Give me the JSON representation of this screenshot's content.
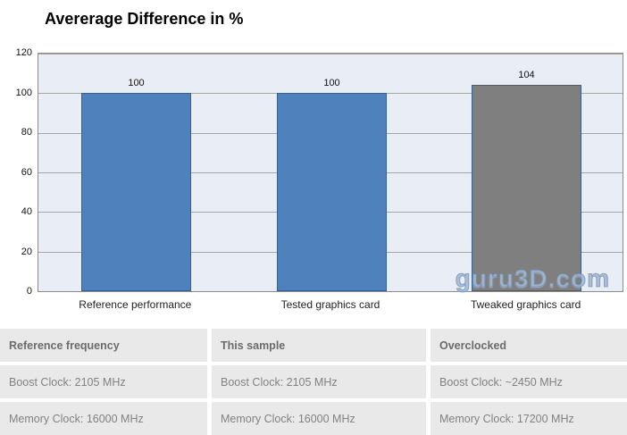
{
  "chart_data": {
    "type": "bar",
    "title": "Avererage Difference in %",
    "categories": [
      "Reference performance",
      "Tested graphics card",
      "Tweaked graphics card"
    ],
    "values": [
      100,
      100,
      104
    ],
    "bar_colors": [
      "#4f81bd",
      "#4f81bd",
      "#7f7f7f"
    ],
    "bar_border_color": "#36618e",
    "xlabel": "",
    "ylabel": "",
    "ylim": [
      0,
      120
    ],
    "yticks": [
      0,
      20,
      40,
      60,
      80,
      100,
      120
    ],
    "grid": true,
    "legend": "none",
    "plot_background": "#e9edf5",
    "gridline_color": "#a6a6a6"
  },
  "watermark": {
    "text": "guru3D.com",
    "color": "#94aece"
  },
  "spec_table": {
    "headers": [
      "Reference frequency",
      "This sample",
      "Overclocked"
    ],
    "rows": [
      [
        "Boost Clock: 2105 MHz",
        "Boost Clock: 2105 MHz",
        "Boost Clock: ~2450 MHz"
      ],
      [
        "Memory Clock: 16000 MHz",
        "Memory Clock: 16000 MHz",
        "Memory Clock: 17200 MHz"
      ]
    ]
  }
}
